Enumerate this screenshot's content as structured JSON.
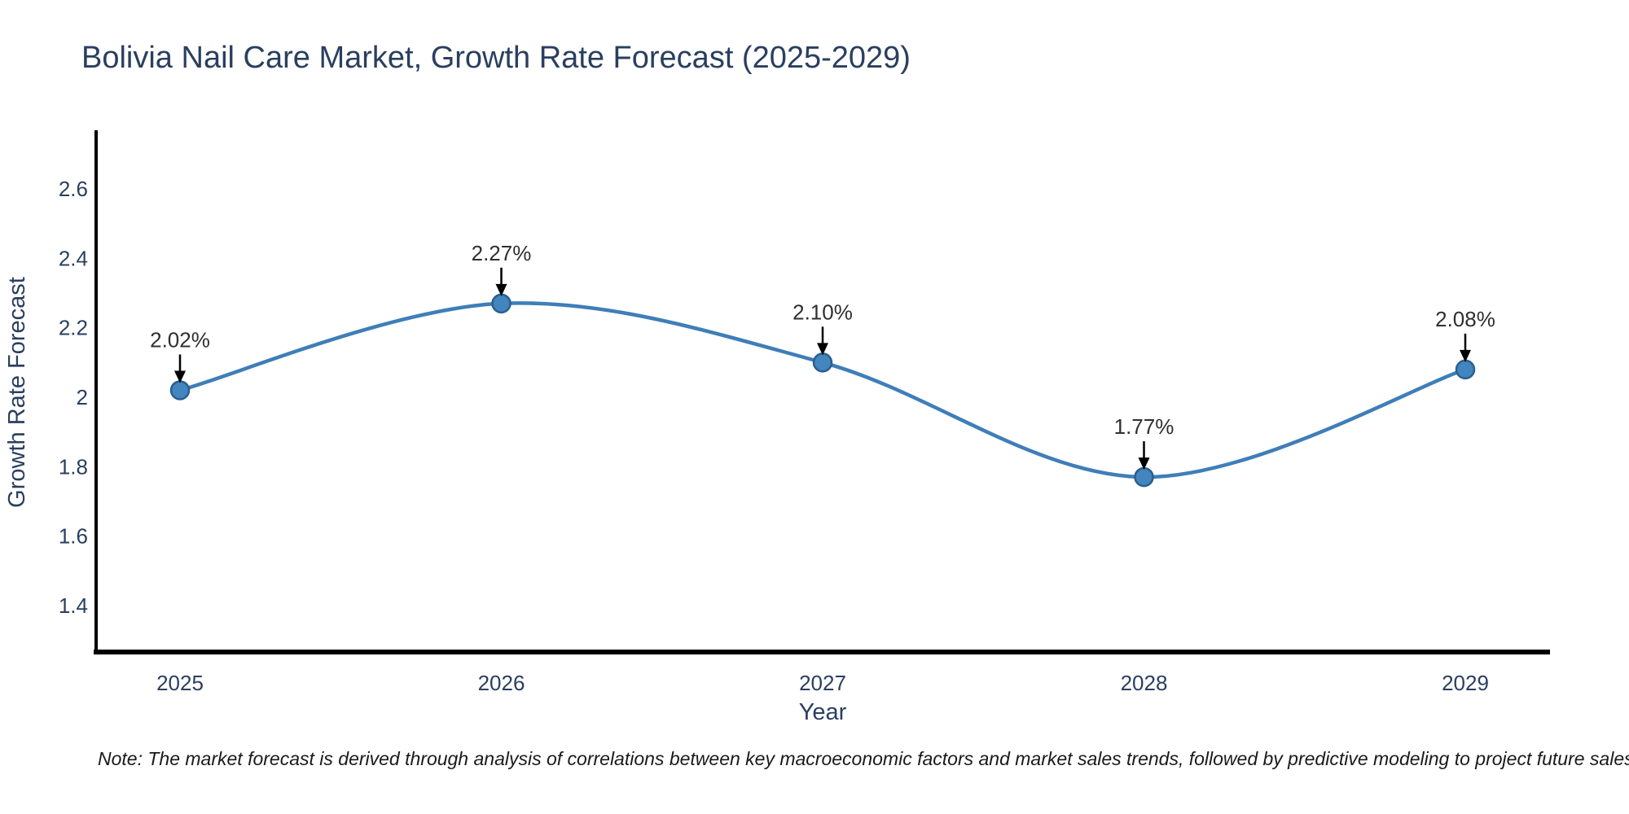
{
  "chart_data": {
    "type": "line",
    "title": "Bolivia Nail Care Market, Growth Rate Forecast (2025-2029)",
    "xlabel": "Year",
    "ylabel": "Growth Rate Forecast",
    "x": [
      "2025",
      "2026",
      "2027",
      "2028",
      "2029"
    ],
    "values": [
      2.02,
      2.27,
      2.1,
      1.77,
      2.08
    ],
    "point_labels": [
      "2.02%",
      "2.27%",
      "2.10%",
      "1.77%",
      "2.08%"
    ],
    "ytick_labels": [
      "2.6",
      "2.4",
      "2.2",
      "2",
      "1.8",
      "1.6",
      "1.4"
    ],
    "ytick_values": [
      2.6,
      2.4,
      2.2,
      2.0,
      1.8,
      1.6,
      1.4
    ],
    "ylim": [
      1.26,
      2.77
    ],
    "line_shape": "spline",
    "grid": false,
    "legend_position": "none",
    "colors": {
      "line": "#3f7eb8",
      "marker_fill": "#4285bf",
      "marker_edge": "#2b5f8e",
      "axis_line": "#000000",
      "title_text": "#2a3f5f",
      "tick_text": "#2a3f5f",
      "axis_title_text": "#2a3f5f",
      "annotation_text": "#2f2f2f",
      "arrow": "#000000",
      "background": "#ffffff"
    }
  },
  "footnote": "Note: The market forecast is derived through analysis of correlations between key macroeconomic factors and market sales trends, followed by predictive modeling to project future sales"
}
